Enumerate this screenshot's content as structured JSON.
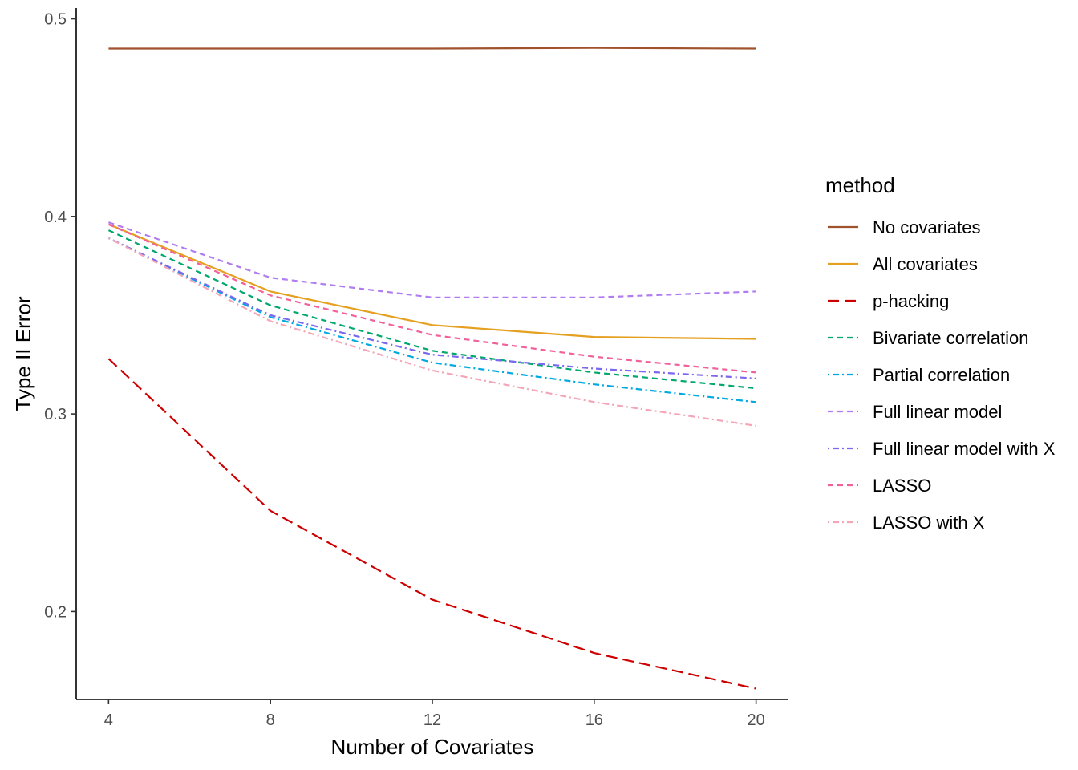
{
  "chart_data": {
    "type": "line",
    "xlabel": "Number of Covariates",
    "ylabel": "Type II Error",
    "x": [
      4,
      8,
      12,
      16,
      20
    ],
    "xlim": [
      3.2,
      20.8
    ],
    "ylim": [
      0.1555,
      0.5055
    ],
    "x_ticks": [
      4,
      8,
      12,
      16,
      20
    ],
    "y_ticks": [
      0.2,
      0.3,
      0.4,
      0.5
    ],
    "x_tick_labels": [
      "4",
      "8",
      "12",
      "16",
      "20"
    ],
    "y_tick_labels": [
      "0.2",
      "0.3",
      "0.4",
      "0.5"
    ],
    "grid": false,
    "legend": {
      "title": "method",
      "position": "right"
    },
    "series": [
      {
        "name": "No covariates",
        "values": [
          0.485,
          0.485,
          0.485,
          0.4853,
          0.485
        ],
        "color": "#A0522D",
        "dash": "solid"
      },
      {
        "name": "All covariates",
        "values": [
          0.396,
          0.362,
          0.345,
          0.339,
          0.338
        ],
        "color": "#E6A020",
        "dash": "solid"
      },
      {
        "name": "p-hacking",
        "values": [
          0.328,
          0.251,
          0.206,
          0.179,
          0.161
        ],
        "color": "#CC0000",
        "dash": "longdash"
      },
      {
        "name": "Bivariate correlation",
        "values": [
          0.393,
          0.355,
          0.332,
          0.321,
          0.313
        ],
        "color": "#00A86B",
        "dash": "dashed"
      },
      {
        "name": "Partial correlation",
        "values": [
          0.389,
          0.349,
          0.326,
          0.315,
          0.306
        ],
        "color": "#00A9E0",
        "dash": "dotdash"
      },
      {
        "name": "Full linear model",
        "values": [
          0.397,
          0.369,
          0.359,
          0.359,
          0.362
        ],
        "color": "#B07CF0",
        "dash": "dashed"
      },
      {
        "name": "Full linear model with X",
        "values": [
          0.389,
          0.35,
          0.33,
          0.323,
          0.318
        ],
        "color": "#7B68EE",
        "dash": "dotdash"
      },
      {
        "name": "LASSO",
        "values": [
          0.396,
          0.36,
          0.34,
          0.329,
          0.321
        ],
        "color": "#F0609A",
        "dash": "dashed"
      },
      {
        "name": "LASSO with X",
        "values": [
          0.389,
          0.347,
          0.322,
          0.306,
          0.294
        ],
        "color": "#F4A6B8",
        "dash": "dotdash"
      }
    ]
  }
}
